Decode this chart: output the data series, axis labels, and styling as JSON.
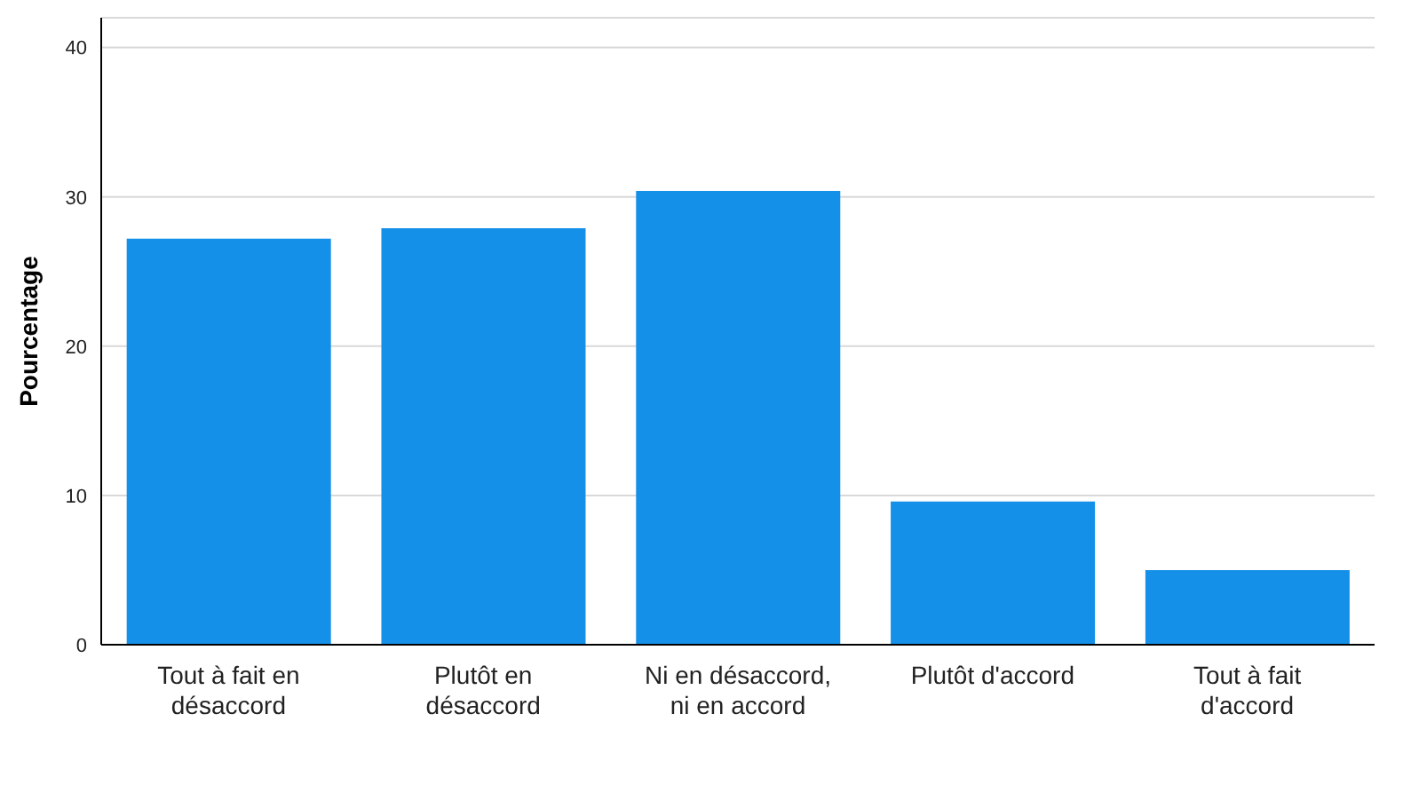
{
  "chart_data": {
    "type": "bar",
    "ylabel": "Pourcentage",
    "categories": [
      "Tout à fait en désaccord",
      "Plutôt en désaccord",
      "Ni en désaccord, ni en accord",
      "Plutôt d'accord",
      "Tout à fait d'accord"
    ],
    "values": [
      27.2,
      27.9,
      30.4,
      9.6,
      5.0
    ],
    "color": "#1590e8",
    "ylim": [
      0,
      42
    ],
    "yticks": [
      0,
      10,
      20,
      30,
      40
    ],
    "grid": "y"
  }
}
